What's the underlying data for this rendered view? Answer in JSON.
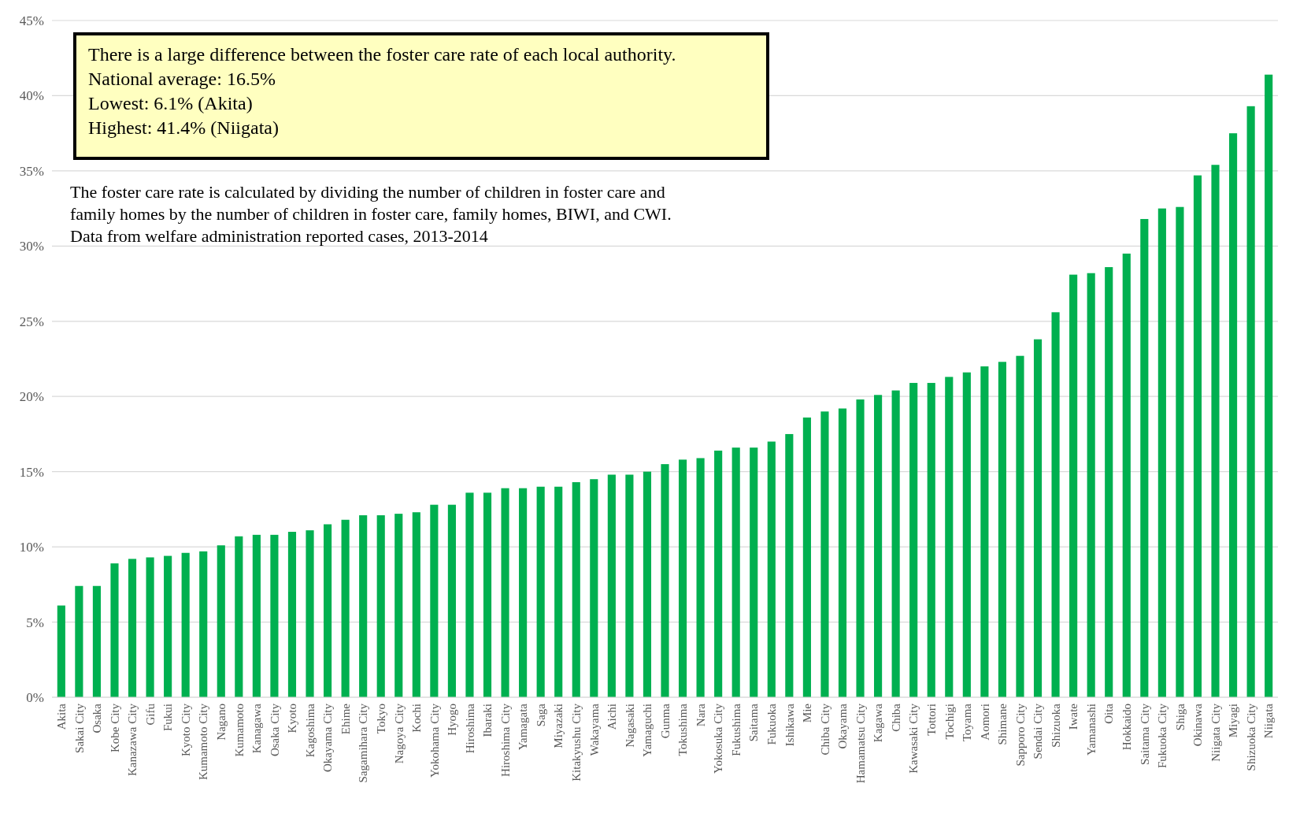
{
  "chart_data": {
    "type": "bar",
    "color": "#00b050",
    "grid": "y",
    "ylim": [
      0,
      45
    ],
    "yticks": [
      {
        "value": 0,
        "label": "0%"
      },
      {
        "value": 5,
        "label": "5%"
      },
      {
        "value": 10,
        "label": "10%"
      },
      {
        "value": 15,
        "label": "15%"
      },
      {
        "value": 20,
        "label": "20%"
      },
      {
        "value": 25,
        "label": "25%"
      },
      {
        "value": 30,
        "label": "30%"
      },
      {
        "value": 35,
        "label": "35%"
      },
      {
        "value": 40,
        "label": "40%"
      },
      {
        "value": 45,
        "label": "45%"
      }
    ],
    "categories": [
      "Akita",
      "Sakai City",
      "Osaka",
      "Kobe City",
      "Kanazawa City",
      "Gifu",
      "Fukui",
      "Kyoto City",
      "Kumamoto City",
      "Nagano",
      "Kumamoto",
      "Kanagawa",
      "Osaka City",
      "Kyoto",
      "Kagoshima",
      "Okayama City",
      "Ehime",
      "Sagamihara City",
      "Tokyo",
      "Nagoya City",
      "Kochi",
      "Yokohama City",
      "Hyogo",
      "Hiroshima",
      "Ibaraki",
      "Hiroshima City",
      "Yamagata",
      "Saga",
      "Miyazaki",
      "Kitakyushu City",
      "Wakayama",
      "Aichi",
      "Nagasaki",
      "Yamaguchi",
      "Gunma",
      "Tokushima",
      "Nara",
      "Yokosuka City",
      "Fukushima",
      "Saitama",
      "Fukuoka",
      "Ishikawa",
      "Mie",
      "Chiba City",
      "Okayama",
      "Hamamatsu City",
      "Kagawa",
      "Chiba",
      "Kawasaki City",
      "Tottori",
      "Tochigi",
      "Toyama",
      "Aomori",
      "Shimane",
      "Sapporo City",
      "Sendai City",
      "Shizuoka",
      "Iwate",
      "Yamanashi",
      "Oita",
      "Hokkaido",
      "Saitama City",
      "Fukuoka City",
      "Shiga",
      "Okinawa",
      "Niigata City",
      "Miyagi",
      "Shizuoka City",
      "Niigata"
    ],
    "values": [
      6.1,
      7.4,
      7.4,
      8.9,
      9.2,
      9.3,
      9.4,
      9.6,
      9.7,
      10.1,
      10.7,
      10.8,
      10.8,
      11.0,
      11.1,
      11.5,
      11.8,
      12.1,
      12.1,
      12.2,
      12.3,
      12.8,
      12.8,
      13.6,
      13.6,
      13.9,
      13.9,
      14.0,
      14.0,
      14.3,
      14.5,
      14.8,
      14.8,
      15.0,
      15.5,
      15.8,
      15.9,
      16.4,
      16.6,
      16.6,
      17.0,
      17.5,
      18.6,
      19.0,
      19.2,
      19.8,
      20.1,
      20.4,
      20.9,
      20.9,
      21.3,
      21.6,
      22.0,
      22.3,
      22.7,
      23.8,
      25.6,
      28.1,
      28.2,
      28.6,
      29.5,
      31.8,
      32.5,
      32.6,
      34.7,
      35.4,
      37.5,
      39.3,
      41.4
    ],
    "annotations": [
      "There is a large difference between the foster care rate of each local authority.\nNational average: 16.5%\nLowest: 6.1% (Akita)\nHighest: 41.4% (Niigata)",
      "The foster care rate is calculated by dividing the number of children in foster care and\nfamily homes by the number of children in foster care, family homes, BIWI, and CWI.\nData from welfare administration reported cases, 2013-2014"
    ]
  }
}
